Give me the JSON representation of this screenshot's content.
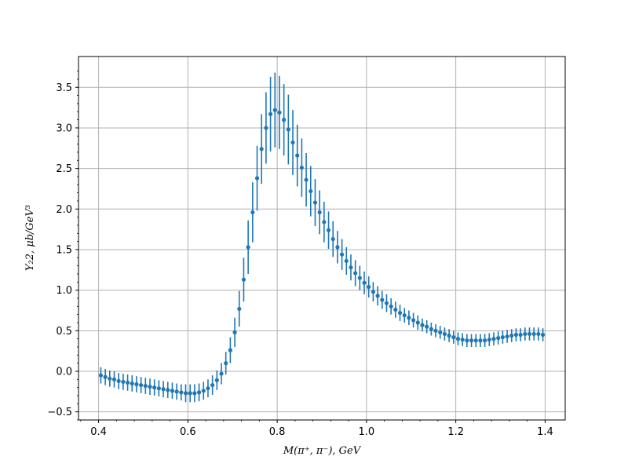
{
  "chart_data": {
    "type": "scatter",
    "title": "",
    "xlabel": "M(π⁺, π⁻), GeV",
    "ylabel": "Y₂2, μb/GeV³",
    "xlim": [
      0.355,
      1.445
    ],
    "ylim": [
      -0.6,
      3.88
    ],
    "xticks": [
      0.4,
      0.6,
      0.8,
      1.0,
      1.2,
      1.4
    ],
    "xtick_labels": [
      "0.4",
      "0.6",
      "0.8",
      "1.0",
      "1.2",
      "1.4"
    ],
    "yticks": [
      -0.5,
      0.0,
      0.5,
      1.0,
      1.5,
      2.0,
      2.5,
      3.0,
      3.5
    ],
    "ytick_labels": [
      "−0.5",
      "0.0",
      "0.5",
      "1.0",
      "1.5",
      "2.0",
      "2.5",
      "3.0",
      "3.5"
    ],
    "grid": true,
    "color": "#1f77b4",
    "x": [
      0.405,
      0.415,
      0.425,
      0.435,
      0.445,
      0.455,
      0.465,
      0.475,
      0.485,
      0.495,
      0.505,
      0.515,
      0.525,
      0.535,
      0.545,
      0.555,
      0.565,
      0.575,
      0.585,
      0.595,
      0.605,
      0.615,
      0.625,
      0.635,
      0.645,
      0.655,
      0.665,
      0.675,
      0.685,
      0.695,
      0.705,
      0.715,
      0.725,
      0.735,
      0.745,
      0.755,
      0.765,
      0.775,
      0.785,
      0.795,
      0.805,
      0.815,
      0.825,
      0.835,
      0.845,
      0.855,
      0.865,
      0.875,
      0.885,
      0.895,
      0.905,
      0.915,
      0.925,
      0.935,
      0.945,
      0.955,
      0.965,
      0.975,
      0.985,
      0.995,
      1.005,
      1.015,
      1.025,
      1.035,
      1.045,
      1.055,
      1.065,
      1.075,
      1.085,
      1.095,
      1.105,
      1.115,
      1.125,
      1.135,
      1.145,
      1.155,
      1.165,
      1.175,
      1.185,
      1.195,
      1.205,
      1.215,
      1.225,
      1.235,
      1.245,
      1.255,
      1.265,
      1.275,
      1.285,
      1.295,
      1.305,
      1.315,
      1.325,
      1.335,
      1.345,
      1.355,
      1.365,
      1.375,
      1.385,
      1.395
    ],
    "y": [
      -0.05,
      -0.07,
      -0.09,
      -0.1,
      -0.12,
      -0.13,
      -0.14,
      -0.15,
      -0.16,
      -0.17,
      -0.18,
      -0.19,
      -0.2,
      -0.21,
      -0.22,
      -0.23,
      -0.24,
      -0.25,
      -0.26,
      -0.27,
      -0.27,
      -0.27,
      -0.26,
      -0.24,
      -0.21,
      -0.17,
      -0.11,
      -0.03,
      0.1,
      0.26,
      0.48,
      0.77,
      1.13,
      1.53,
      1.96,
      2.38,
      2.74,
      3.0,
      3.17,
      3.22,
      3.19,
      3.1,
      2.98,
      2.82,
      2.66,
      2.51,
      2.36,
      2.22,
      2.08,
      1.96,
      1.84,
      1.74,
      1.63,
      1.53,
      1.44,
      1.36,
      1.28,
      1.21,
      1.15,
      1.09,
      1.04,
      0.98,
      0.93,
      0.88,
      0.84,
      0.8,
      0.76,
      0.72,
      0.69,
      0.66,
      0.63,
      0.6,
      0.57,
      0.55,
      0.52,
      0.5,
      0.48,
      0.46,
      0.44,
      0.42,
      0.4,
      0.39,
      0.38,
      0.38,
      0.38,
      0.38,
      0.38,
      0.39,
      0.4,
      0.41,
      0.42,
      0.43,
      0.44,
      0.45,
      0.45,
      0.46,
      0.46,
      0.46,
      0.46,
      0.45
    ],
    "yerr": [
      0.1,
      0.1,
      0.1,
      0.1,
      0.1,
      0.1,
      0.1,
      0.1,
      0.1,
      0.1,
      0.1,
      0.1,
      0.1,
      0.1,
      0.1,
      0.1,
      0.1,
      0.1,
      0.1,
      0.11,
      0.11,
      0.11,
      0.11,
      0.11,
      0.11,
      0.12,
      0.12,
      0.13,
      0.14,
      0.16,
      0.18,
      0.22,
      0.27,
      0.33,
      0.37,
      0.4,
      0.43,
      0.44,
      0.46,
      0.46,
      0.45,
      0.44,
      0.43,
      0.4,
      0.38,
      0.36,
      0.33,
      0.31,
      0.29,
      0.27,
      0.25,
      0.23,
      0.22,
      0.2,
      0.19,
      0.17,
      0.16,
      0.16,
      0.15,
      0.14,
      0.13,
      0.12,
      0.12,
      0.11,
      0.11,
      0.1,
      0.1,
      0.1,
      0.09,
      0.09,
      0.09,
      0.09,
      0.08,
      0.08,
      0.08,
      0.08,
      0.08,
      0.08,
      0.08,
      0.08,
      0.08,
      0.08,
      0.08,
      0.08,
      0.08,
      0.08,
      0.08,
      0.08,
      0.08,
      0.08,
      0.08,
      0.08,
      0.08,
      0.08,
      0.08,
      0.08,
      0.08,
      0.08,
      0.08,
      0.08
    ]
  }
}
